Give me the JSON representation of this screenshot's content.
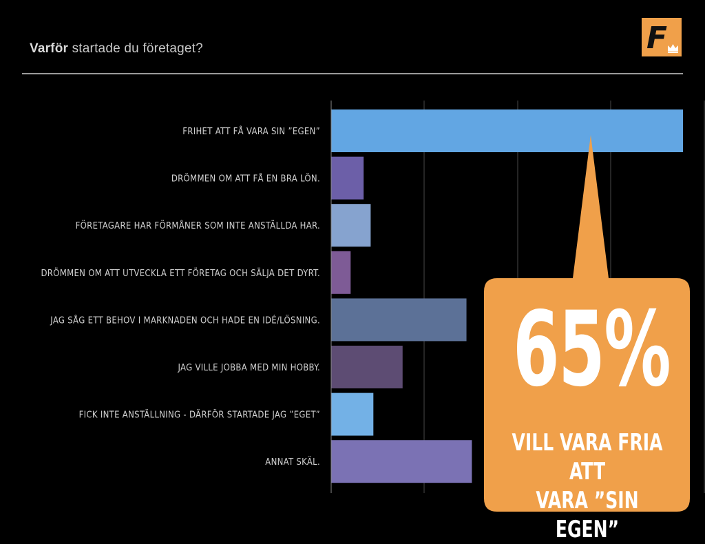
{
  "header": {
    "title_bold": "Varför",
    "title_rest": "startade du företaget?"
  },
  "logo": {
    "letter": "F",
    "icon": "crown-icon",
    "color": "#f0a04a"
  },
  "callout": {
    "value": "65%",
    "text": "VILL VARA FRIA ATT\nVARA ”SIN EGEN”",
    "color": "#f0a04a"
  },
  "chart_data": {
    "type": "bar",
    "orientation": "horizontal",
    "categories": [
      "FRIHET ATT FÅ VARA SIN ”EGEN”",
      "DRÖMMEN OM ATT FÅ EN BRA LÖN.",
      "FÖRETAGARE HAR FÖRMÅNER SOM INTE ANSTÄLLDA HAR.",
      "DRÖMMEN OM ATT UTVECKLA ETT FÖRETAG OCH SÄLJA DET DYRT.",
      "JAG SÅG ETT BEHOV I MARKNADEN OCH HADE EN IDÉ/LÖSNING.",
      "JAG VILLE JOBBA MED MIN HOBBY.",
      "FICK INTE ANSTÄLLNING - DÄRFÖR STARTADE JAG ”EGET”",
      "ANNAT SKÄL."
    ],
    "values": [
      65,
      6,
      7.3,
      3.6,
      25,
      13.2,
      7.8,
      26
    ],
    "colors": [
      "#62a6e3",
      "#6c5fa8",
      "#86a3cf",
      "#7e5b96",
      "#5c7197",
      "#5d4c73",
      "#73b1e6",
      "#7b72b4"
    ],
    "xlim": [
      0,
      65
    ],
    "grid": true,
    "legend": "none"
  }
}
